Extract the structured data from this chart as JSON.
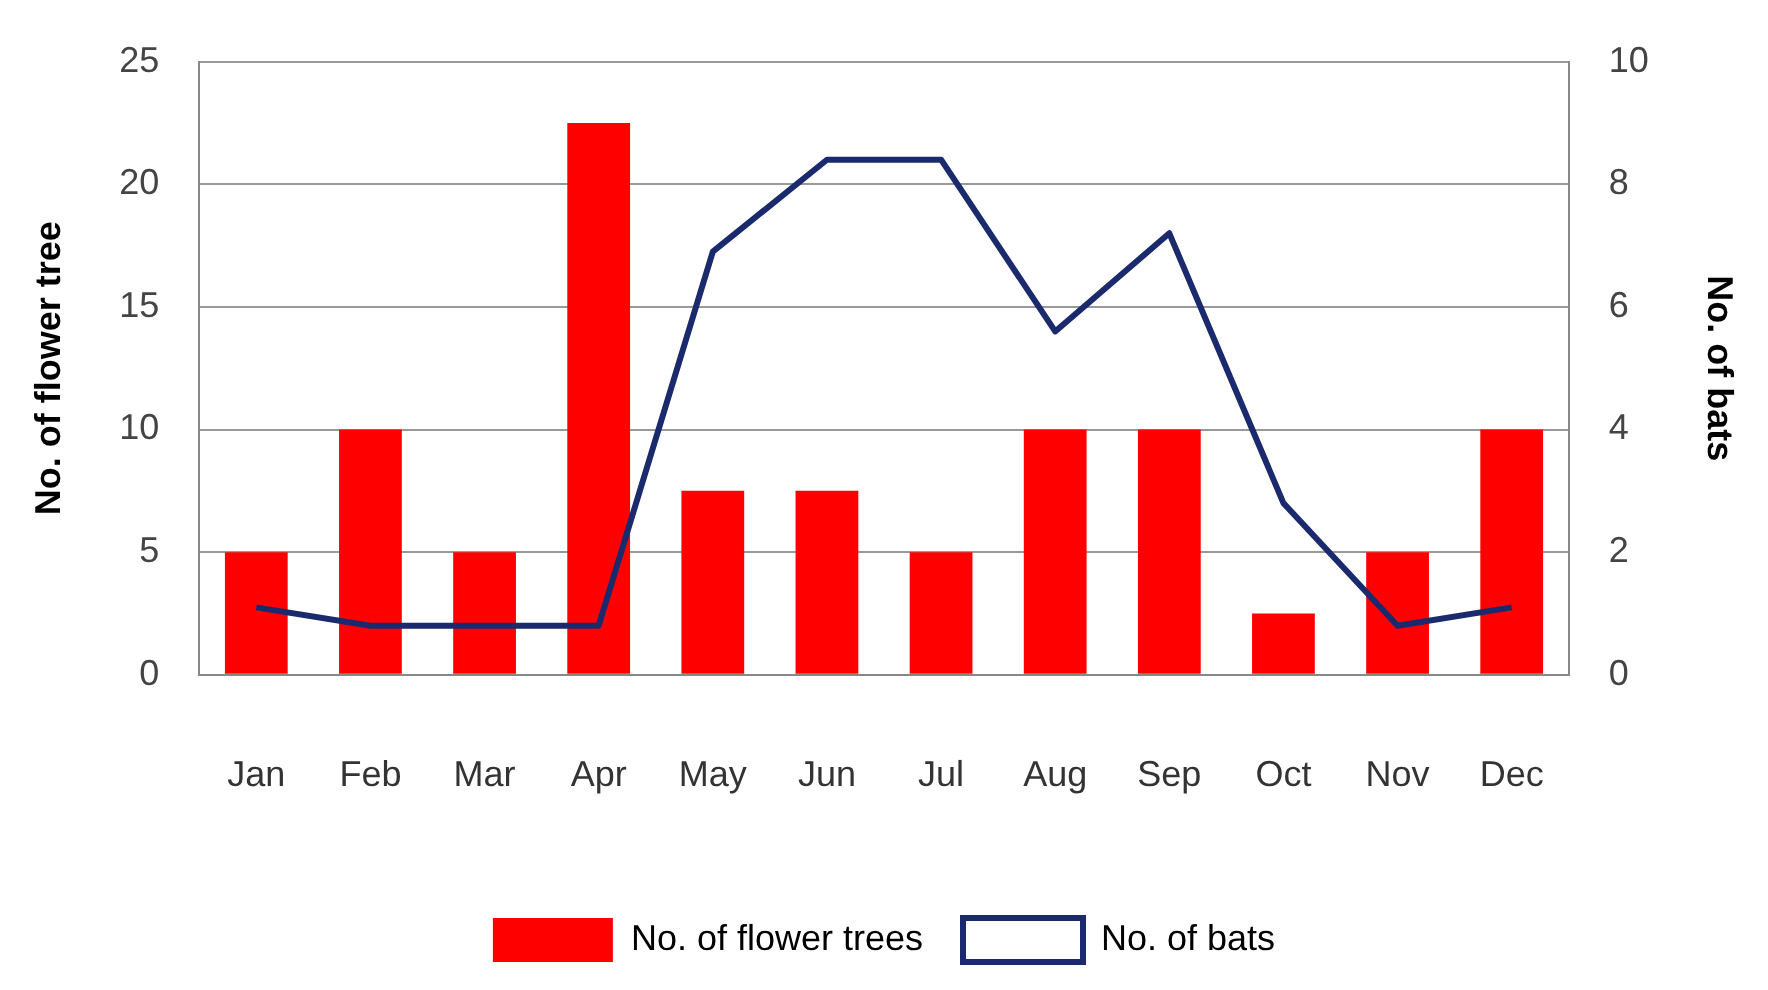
{
  "chart_data": {
    "type": "bar",
    "categories": [
      "Jan",
      "Feb",
      "Mar",
      "Apr",
      "May",
      "Jun",
      "Jul",
      "Aug",
      "Sep",
      "Oct",
      "Nov",
      "Dec"
    ],
    "ylabel": "No. of flower tree",
    "y2label": "No. of bats",
    "series": [
      {
        "name": "No. of flower trees",
        "color": "#ff0000",
        "values": [
          5,
          10,
          5,
          22.5,
          7.5,
          7.5,
          5,
          10,
          10,
          2.5,
          5,
          10
        ]
      },
      {
        "name": "No. of bats",
        "type": "line",
        "axis": "y2",
        "color": "#1a2a6c",
        "values": [
          1.1,
          0.8,
          0.8,
          0.8,
          6.9,
          8.4,
          8.4,
          5.6,
          7.2,
          2.8,
          0.8,
          1.1
        ]
      }
    ],
    "ylim": [
      0,
      25
    ],
    "yticks": [
      0,
      5,
      10,
      15,
      20,
      25
    ],
    "y2lim": [
      0,
      10
    ],
    "y2ticks": [
      0,
      2,
      4,
      6,
      8,
      10
    ],
    "grid": "y",
    "legend": "bottom",
    "marker": "none",
    "line_style": "solid"
  }
}
